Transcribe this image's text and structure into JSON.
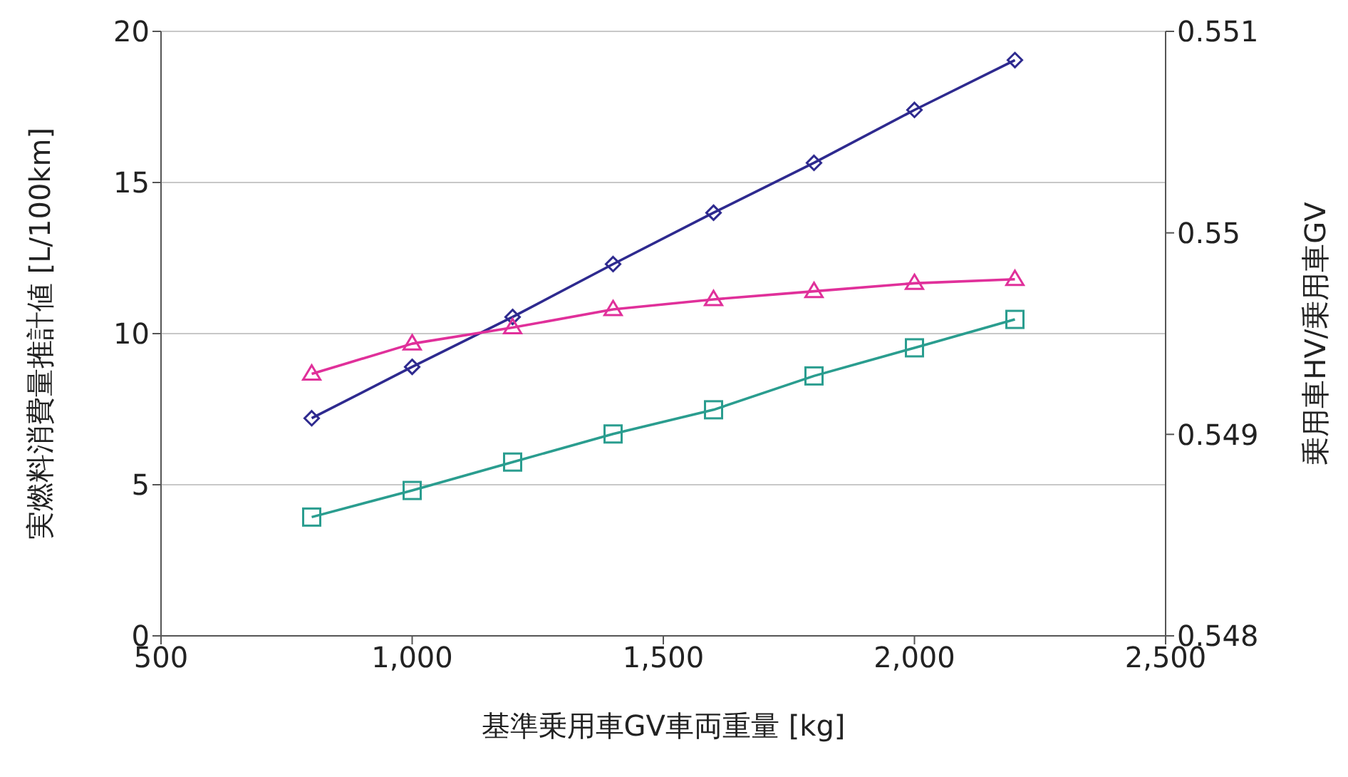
{
  "chart_data": {
    "type": "line",
    "xlabel": "基準乗用車GV車両重量 [kg]",
    "ylabel": "実燃料消費量推計値 [L/100km]",
    "y2label": "乗用車HV/乗用車GV",
    "x": [
      800,
      1000,
      1200,
      1400,
      1600,
      1800,
      2000,
      2200
    ],
    "series": [
      {
        "color": "#2e2a8f",
        "marker": "diamond",
        "values": [
          7.2,
          8.9,
          10.55,
          12.3,
          14.0,
          15.65,
          17.4,
          19.05
        ]
      },
      {
        "color": "#e0309a",
        "marker": "triangle",
        "axis": "y2",
        "values": [
          0.5493,
          0.54945,
          0.54953,
          0.54962,
          0.54967,
          0.54971,
          0.54975,
          0.54977
        ]
      },
      {
        "color": "#2a9d8f",
        "marker": "square",
        "values": [
          3.93,
          4.81,
          5.75,
          6.68,
          7.48,
          8.6,
          9.53,
          10.47
        ]
      }
    ],
    "xlim": [
      500,
      2500
    ],
    "xticks": [
      {
        "value": 500,
        "label": "500"
      },
      {
        "value": 1000,
        "label": "1,000"
      },
      {
        "value": 1500,
        "label": "1,500"
      },
      {
        "value": 2000,
        "label": "2,000"
      },
      {
        "value": 2500,
        "label": "2,500"
      }
    ],
    "ylim": [
      0,
      20
    ],
    "yticks": [
      0,
      5,
      10,
      15,
      20
    ],
    "y2lim": [
      0.548,
      0.551
    ],
    "y2ticks": [
      0.548,
      0.549,
      0.55,
      0.551
    ],
    "grid": "y",
    "legend": false,
    "line_style": "solid"
  }
}
